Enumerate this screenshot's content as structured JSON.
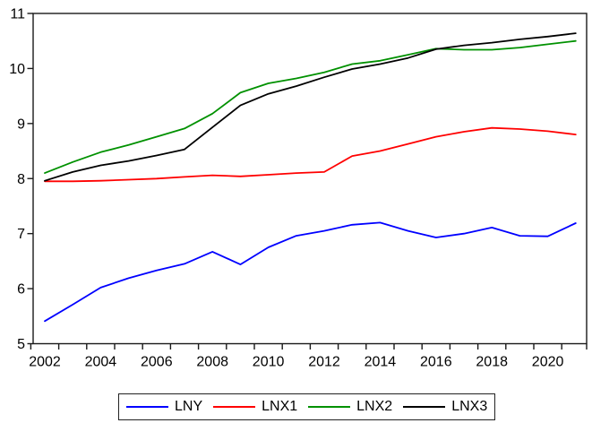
{
  "chart_data": {
    "type": "line",
    "title": "",
    "xlabel": "",
    "ylabel": "",
    "grid": false,
    "ylim": [
      5,
      11
    ],
    "y_ticks": [
      "5",
      "6",
      "7",
      "8",
      "9",
      "10",
      "11"
    ],
    "x": [
      2002,
      2003,
      2004,
      2005,
      2006,
      2007,
      2008,
      2009,
      2010,
      2011,
      2012,
      2013,
      2014,
      2015,
      2016,
      2017,
      2018,
      2019,
      2020,
      2021
    ],
    "x_tick_labels": [
      "2002",
      "2004",
      "2006",
      "2008",
      "2010",
      "2012",
      "2014",
      "2016",
      "2018",
      "2020"
    ],
    "legend_position": "bottom-center-boxed",
    "series": [
      {
        "name": "LNY",
        "color": "#0000ff",
        "values": [
          5.41,
          5.71,
          6.02,
          6.19,
          6.33,
          6.45,
          6.67,
          6.44,
          6.75,
          6.96,
          7.05,
          7.16,
          7.2,
          7.05,
          6.93,
          7.0,
          7.11,
          6.96,
          6.95,
          7.19
        ]
      },
      {
        "name": "LNX1",
        "color": "#ff0000",
        "values": [
          7.95,
          7.95,
          7.96,
          7.98,
          8.0,
          8.03,
          8.06,
          8.04,
          8.07,
          8.1,
          8.12,
          8.41,
          8.5,
          8.63,
          8.76,
          8.85,
          8.92,
          8.9,
          8.86,
          8.8
        ]
      },
      {
        "name": "LNX2",
        "color": "#009100",
        "values": [
          8.1,
          8.3,
          8.48,
          8.61,
          8.76,
          8.91,
          9.18,
          9.56,
          9.73,
          9.82,
          9.93,
          10.08,
          10.14,
          10.25,
          10.36,
          10.34,
          10.34,
          10.38,
          10.44,
          10.5
        ]
      },
      {
        "name": "LNX3",
        "color": "#000000",
        "values": [
          7.96,
          8.12,
          8.24,
          8.32,
          8.42,
          8.53,
          8.93,
          9.33,
          9.54,
          9.68,
          9.84,
          9.99,
          10.08,
          10.19,
          10.35,
          10.42,
          10.47,
          10.53,
          10.58,
          10.64
        ]
      }
    ]
  }
}
